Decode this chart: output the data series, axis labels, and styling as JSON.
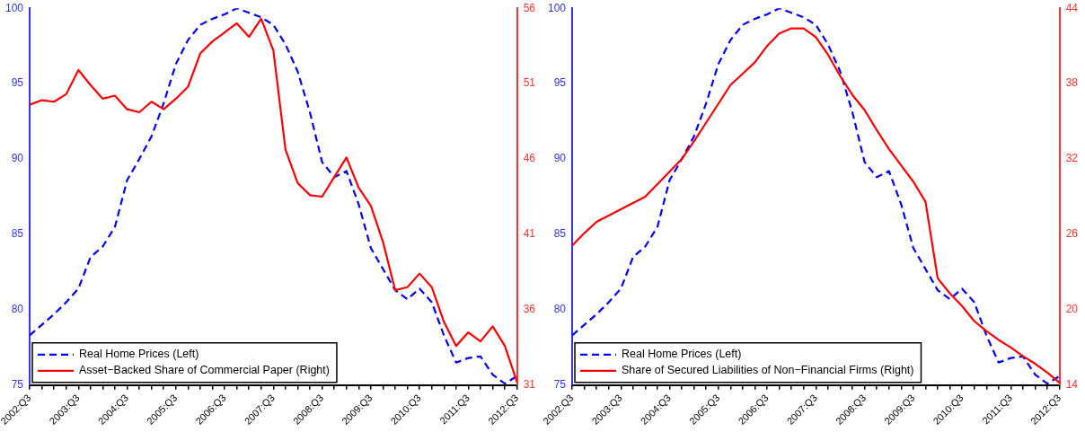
{
  "chart_data": [
    {
      "type": "line",
      "categories": [
        "2002:Q3",
        null,
        null,
        null,
        "2003:Q3",
        null,
        null,
        null,
        "2004:Q3",
        null,
        null,
        null,
        "2005:Q3",
        null,
        null,
        null,
        "2006:Q3",
        null,
        null,
        null,
        "2007:Q3",
        null,
        null,
        null,
        "2008:Q3",
        null,
        null,
        null,
        "2009:Q3",
        null,
        null,
        null,
        "2010:Q3",
        null,
        null,
        null,
        "2011:Q3",
        null,
        null,
        null,
        "2012:Q3"
      ],
      "series": [
        {
          "name": "Real Home Prices (Left)",
          "color": "#0000ff",
          "line_style": "dashed",
          "values": [
            78.3,
            79.0,
            79.7,
            80.5,
            81.4,
            83.5,
            84.2,
            85.5,
            88.6,
            90.0,
            91.5,
            93.7,
            96.3,
            97.9,
            98.9,
            99.3,
            99.6,
            100,
            99.7,
            99.4,
            98.9,
            97.6,
            95.8,
            93.1,
            89.8,
            88.8,
            89.2,
            87.0,
            84.1,
            82.7,
            81.3,
            80.7,
            81.4,
            80.5,
            78.3,
            76.5,
            76.8,
            76.9,
            75.7,
            75.1,
            75.6
          ]
        },
        {
          "name": "Asset−Backed Share of Commercial Paper (Right)",
          "color": "#ff0000",
          "line_style": "solid",
          "axis": "y2",
          "values": [
            49.6,
            49.9,
            49.8,
            50.3,
            51.9,
            50.9,
            50.0,
            50.2,
            49.3,
            49.1,
            49.8,
            49.3,
            50.0,
            50.8,
            53.0,
            53.8,
            54.4,
            55.0,
            54.1,
            55.3,
            53.2,
            46.6,
            44.4,
            43.6,
            43.5,
            44.8,
            46.1,
            44.1,
            42.9,
            40.5,
            37.3,
            37.5,
            38.4,
            37.5,
            35.2,
            33.6,
            34.5,
            33.9,
            34.9,
            33.6,
            31.2
          ]
        }
      ],
      "ylim": [
        75,
        100
      ],
      "yticks": [
        75,
        80,
        85,
        90,
        95,
        100
      ],
      "y2lim": [
        31,
        56
      ],
      "y2ticks": [
        31,
        36,
        41,
        46,
        51,
        56
      ],
      "legend": "bottom left",
      "marker": "none"
    },
    {
      "type": "line",
      "categories": [
        "2002:Q3",
        null,
        null,
        null,
        "2003:Q3",
        null,
        null,
        null,
        "2004:Q3",
        null,
        null,
        null,
        "2005:Q3",
        null,
        null,
        null,
        "2006:Q3",
        null,
        null,
        null,
        "2007:Q3",
        null,
        null,
        null,
        "2008:Q3",
        null,
        null,
        null,
        "2009:Q3",
        null,
        null,
        null,
        "2010:Q3",
        null,
        null,
        null,
        "2011:Q3",
        null,
        null,
        null,
        "2012:Q3"
      ],
      "series": [
        {
          "name": "Real Home Prices (Left)",
          "color": "#0000ff",
          "line_style": "dashed",
          "values": [
            78.3,
            79.0,
            79.7,
            80.5,
            81.4,
            83.5,
            84.2,
            85.5,
            88.6,
            90.0,
            91.5,
            93.7,
            96.3,
            97.9,
            98.9,
            99.3,
            99.6,
            100,
            99.7,
            99.4,
            98.9,
            97.6,
            95.8,
            93.1,
            89.8,
            88.8,
            89.2,
            87.0,
            84.1,
            82.7,
            81.3,
            80.7,
            81.4,
            80.5,
            78.3,
            76.5,
            76.8,
            76.9,
            75.7,
            75.1,
            75.6
          ]
        },
        {
          "name": "Share of Secured Liabilities of Non−Financial Firms (Right)",
          "color": "#ff0000",
          "line_style": "solid",
          "axis": "y2",
          "values": [
            25.1,
            26.1,
            27.0,
            27.5,
            28.0,
            28.5,
            29.0,
            30.0,
            31.0,
            32.0,
            33.4,
            34.9,
            36.4,
            37.9,
            38.8,
            39.7,
            41.0,
            42.0,
            42.4,
            42.4,
            41.7,
            40.3,
            38.6,
            37.1,
            35.9,
            34.3,
            32.8,
            31.5,
            30.2,
            28.6,
            22.5,
            21.3,
            20.3,
            19.1,
            18.3,
            17.6,
            17.0,
            16.3,
            15.7,
            15.0,
            14.2
          ]
        }
      ],
      "ylim": [
        75,
        100
      ],
      "yticks": [
        75,
        80,
        85,
        90,
        95,
        100
      ],
      "y2lim": [
        14,
        44
      ],
      "y2ticks": [
        14,
        20,
        26,
        32,
        38,
        44
      ],
      "legend": "bottom left",
      "marker": "none"
    }
  ]
}
